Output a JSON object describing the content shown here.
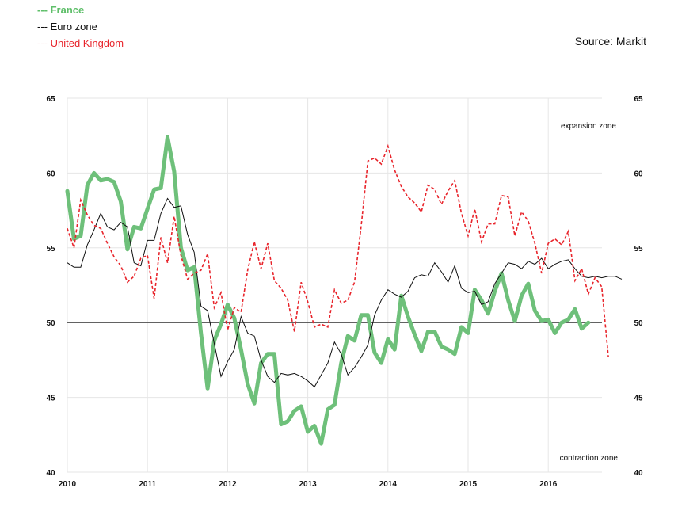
{
  "legend": {
    "france": "--- France",
    "eurozone": "--- Euro zone",
    "uk": "--- United Kingdom"
  },
  "source": "Source: Markit",
  "chart_data": {
    "type": "line",
    "xlim": [
      2010.0,
      2016.67
    ],
    "ylim": [
      40,
      65
    ],
    "x_ticks": [
      "2010",
      "2011",
      "2012",
      "2013",
      "2014",
      "2015",
      "2016"
    ],
    "y_ticks": [
      40,
      45,
      50,
      55,
      60,
      65
    ],
    "reference_line": 50,
    "annotations": {
      "expansion": "expansion zone",
      "contraction": "contraction  zone"
    },
    "grid": "vertical at years, horizontal at y ticks",
    "colors": {
      "France": "#6ec07a",
      "Euro zone": "#111111",
      "United Kingdom": "#e8242b"
    },
    "start": "2010-01",
    "series": [
      {
        "name": "France",
        "style": "thick-solid",
        "values": [
          58.8,
          55.6,
          55.8,
          59.2,
          60.0,
          59.5,
          59.6,
          59.4,
          58.1,
          54.9,
          56.4,
          56.3,
          57.6,
          58.9,
          59.0,
          62.4,
          60.1,
          55.0,
          53.5,
          53.7,
          49.3,
          45.6,
          48.8,
          49.9,
          51.2,
          50.3,
          48.2,
          45.9,
          44.6,
          47.3,
          47.9,
          47.9,
          43.2,
          43.4,
          44.1,
          44.4,
          42.7,
          43.1,
          41.9,
          44.2,
          44.5,
          47.3,
          49.1,
          48.8,
          50.5,
          50.5,
          48.0,
          47.3,
          48.9,
          48.2,
          51.8,
          50.4,
          49.2,
          48.1,
          49.4,
          49.4,
          48.4,
          48.2,
          47.9,
          49.7,
          49.3,
          52.2,
          51.5,
          50.6,
          52.1,
          53.3,
          51.5,
          50.1,
          51.8,
          52.6,
          50.8,
          50.1,
          50.2,
          49.3,
          50.0,
          50.2,
          50.9,
          49.6,
          50.0
        ]
      },
      {
        "name": "Euro zone",
        "style": "thin-solid",
        "values": [
          54.0,
          53.7,
          53.7,
          55.2,
          56.2,
          57.3,
          56.4,
          56.2,
          56.7,
          56.4,
          54.0,
          53.8,
          55.5,
          55.5,
          57.3,
          58.3,
          57.7,
          57.8,
          55.9,
          54.7,
          51.1,
          50.8,
          48.6,
          46.4,
          47.4,
          48.2,
          50.4,
          49.3,
          49.1,
          47.5,
          46.4,
          46.0,
          46.6,
          46.5,
          46.6,
          46.4,
          46.1,
          45.7,
          46.5,
          47.3,
          48.7,
          47.9,
          46.5,
          47.0,
          47.7,
          48.5,
          50.5,
          51.5,
          52.2,
          51.9,
          51.7,
          52.1,
          53.0,
          53.2,
          53.1,
          54.0,
          53.4,
          52.7,
          53.8,
          52.3,
          52.0,
          52.1,
          51.2,
          51.4,
          52.6,
          53.3,
          54.0,
          53.9,
          53.6,
          54.1,
          53.9,
          54.3,
          53.6,
          53.9,
          54.1,
          54.2,
          53.6,
          53.1,
          53.0,
          53.1,
          53.0,
          53.1,
          53.1,
          52.9
        ]
      },
      {
        "name": "United Kingdom",
        "style": "dashed",
        "values": [
          56.3,
          55.0,
          58.2,
          57.2,
          56.5,
          56.3,
          55.3,
          54.4,
          53.8,
          52.7,
          53.1,
          54.3,
          54.5,
          51.6,
          55.7,
          54.0,
          57.1,
          54.5,
          52.9,
          53.3,
          53.5,
          54.6,
          51.0,
          52.0,
          49.5,
          51.0,
          50.7,
          53.5,
          55.4,
          53.6,
          55.3,
          52.8,
          52.3,
          51.5,
          49.4,
          52.7,
          51.4,
          49.7,
          49.9,
          49.7,
          52.2,
          51.3,
          51.5,
          52.7,
          56.5,
          60.8,
          61.0,
          60.6,
          61.8,
          60.2,
          59.1,
          58.4,
          58.0,
          57.4,
          59.2,
          58.9,
          57.9,
          58.8,
          59.5,
          57.3,
          55.8,
          57.6,
          55.4,
          56.6,
          56.6,
          58.5,
          58.4,
          55.8,
          57.4,
          56.8,
          55.3,
          53.3,
          55.3,
          55.6,
          55.2,
          56.1,
          52.8,
          53.6,
          51.9,
          53.0,
          52.4,
          47.7
        ]
      }
    ]
  }
}
